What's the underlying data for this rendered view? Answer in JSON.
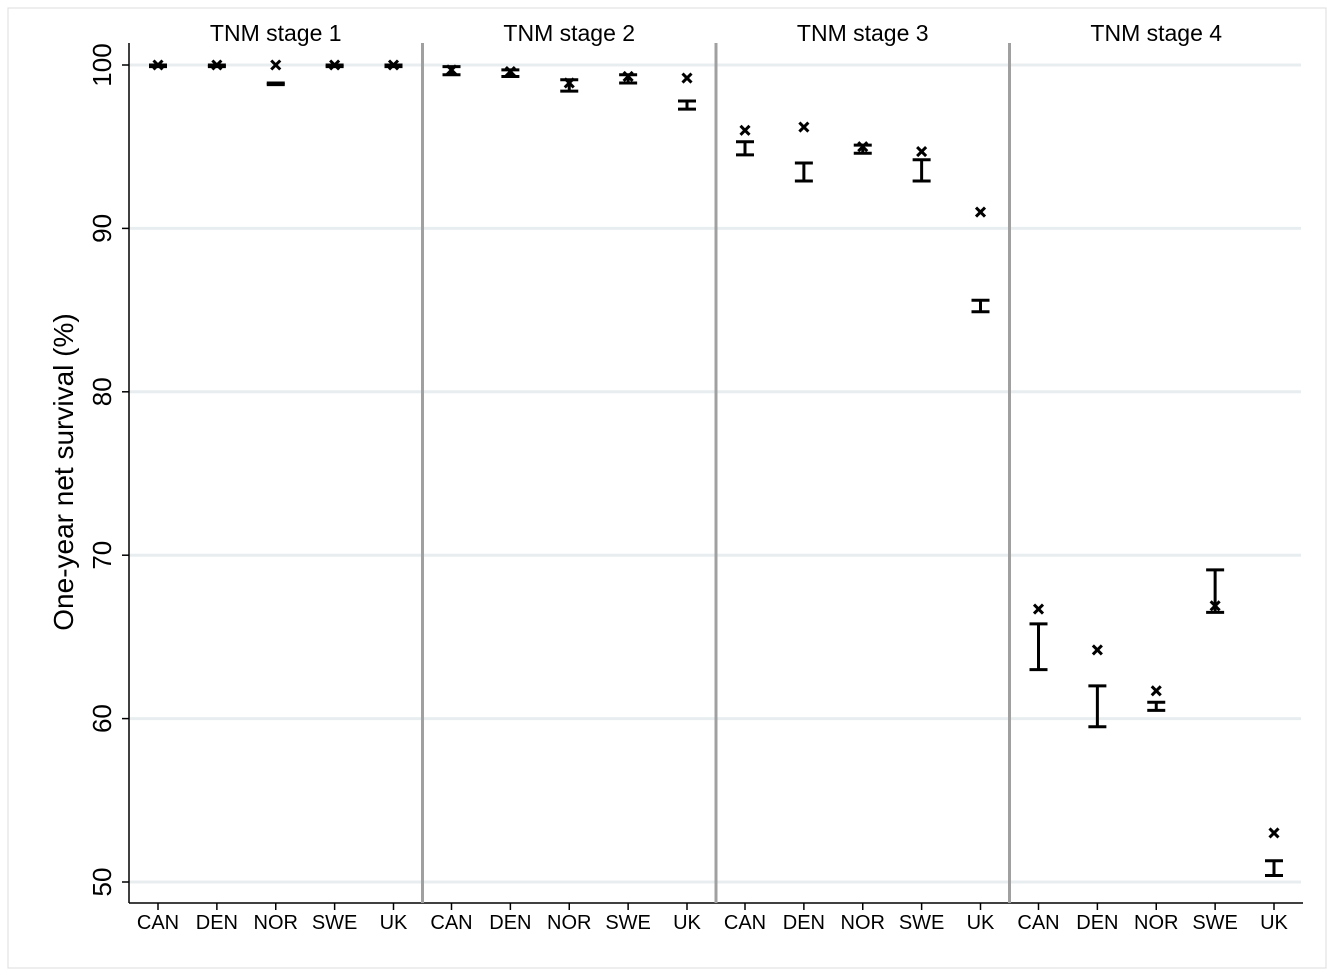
{
  "chart_data": {
    "type": "scatter",
    "ylabel": "One-year net survival (%)",
    "xlabel": "",
    "ylim": [
      48.9,
      102.3
    ],
    "yticks": [
      50,
      60,
      70,
      80,
      90,
      100
    ],
    "grid": true,
    "legend": "none",
    "panels": [
      {
        "title": "TNM stage 1",
        "categories": [
          "CAN",
          "DEN",
          "NOR",
          "SWE",
          "UK"
        ],
        "marker_values": [
          100.0,
          100.0,
          100.0,
          100.0,
          100.0
        ],
        "interval_low": [
          99.9,
          99.9,
          98.8,
          99.9,
          99.9
        ],
        "interval_high": [
          100.0,
          100.0,
          98.9,
          100.0,
          100.0
        ]
      },
      {
        "title": "TNM stage 2",
        "categories": [
          "CAN",
          "DEN",
          "NOR",
          "SWE",
          "UK"
        ],
        "marker_values": [
          99.7,
          99.6,
          98.9,
          99.3,
          99.2
        ],
        "interval_low": [
          99.4,
          99.3,
          98.4,
          98.9,
          97.3
        ],
        "interval_high": [
          99.9,
          99.7,
          99.1,
          99.4,
          97.8
        ]
      },
      {
        "title": "TNM stage 3",
        "categories": [
          "CAN",
          "DEN",
          "NOR",
          "SWE",
          "UK"
        ],
        "marker_values": [
          96.0,
          96.2,
          95.0,
          94.7,
          91.0
        ],
        "interval_low": [
          94.5,
          92.9,
          94.6,
          92.9,
          84.9
        ],
        "interval_high": [
          95.3,
          94.0,
          95.1,
          94.2,
          85.6
        ]
      },
      {
        "title": "TNM stage 4",
        "categories": [
          "CAN",
          "DEN",
          "NOR",
          "SWE",
          "UK"
        ],
        "marker_values": [
          66.7,
          64.2,
          61.7,
          66.9,
          53.0
        ],
        "interval_low": [
          63.0,
          59.5,
          60.5,
          66.5,
          50.4
        ],
        "interval_high": [
          65.8,
          62.0,
          61.0,
          69.1,
          51.3
        ]
      }
    ]
  },
  "colors": {
    "background": "#ffffff",
    "grid": "#e8eef0",
    "separator": "#a0a0a0",
    "axis": "#000000",
    "marks": "#000000"
  }
}
